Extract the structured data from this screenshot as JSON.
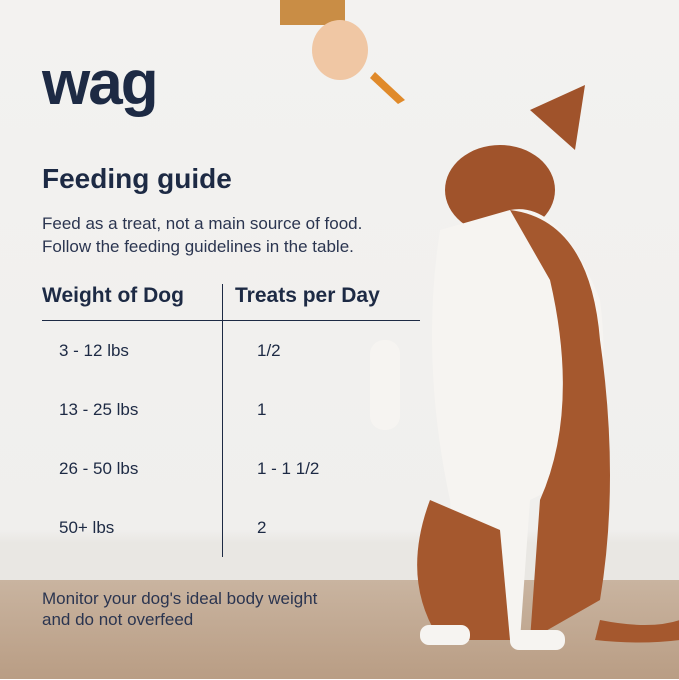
{
  "brand": "wag",
  "title": "Feeding guide",
  "intro": [
    "Feed as a treat, not a main source of food.",
    "Follow the feeding guidelines in the table."
  ],
  "table": {
    "headers": [
      "Weight of Dog",
      "Treats per Day"
    ],
    "rows": [
      [
        "3 - 12 lbs",
        "1/2"
      ],
      [
        "13 - 25 lbs",
        "1"
      ],
      [
        "26 - 50 lbs",
        "1 - 1 1/2"
      ],
      [
        "50+ lbs",
        "2"
      ]
    ]
  },
  "note": [
    "Monitor your dog's ideal body weight",
    "and do not overfeed"
  ]
}
